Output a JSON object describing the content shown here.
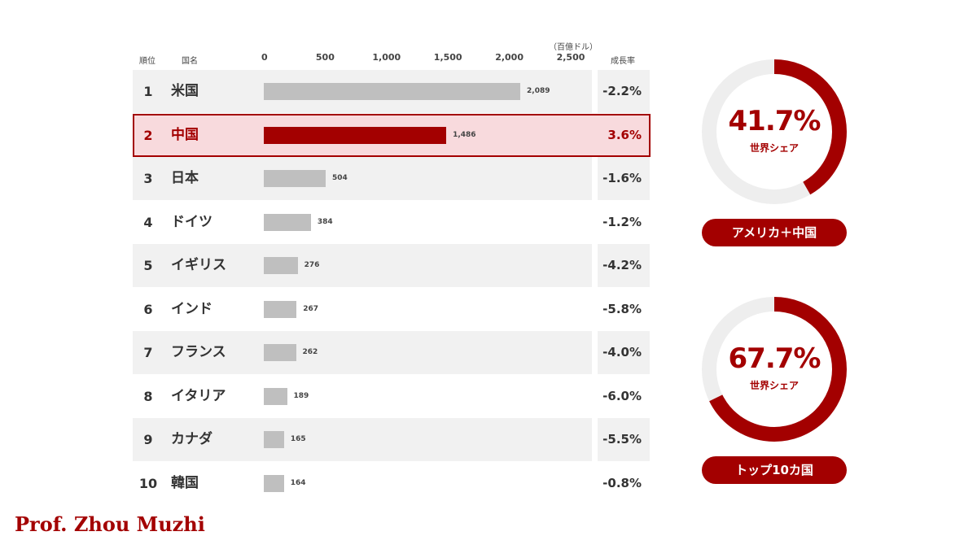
{
  "headers": {
    "rank": "順位",
    "country": "国名",
    "unit": "（百億ドル）",
    "growth": "成長率"
  },
  "colors": {
    "accent": "#a30000",
    "bar": "#bfbfbf",
    "stripe": "#f1f1f1",
    "highlight_bg": "#f8dadd",
    "donut_track": "#eeeeee"
  },
  "chart_data": {
    "type": "bar",
    "orientation": "horizontal",
    "xlim": [
      0,
      2500
    ],
    "ticks": [
      "0",
      "500",
      "1,000",
      "1,500",
      "2,000",
      "2,500"
    ],
    "rows": [
      {
        "rank": "1",
        "name": "米国",
        "value": 2089,
        "label": "2,089",
        "growth": "-2.2%"
      },
      {
        "rank": "2",
        "name": "中国",
        "value": 1486,
        "label": "1,486",
        "growth": "3.6%",
        "highlight": true
      },
      {
        "rank": "3",
        "name": "日本",
        "value": 504,
        "label": "504",
        "growth": "-1.6%"
      },
      {
        "rank": "4",
        "name": "ドイツ",
        "value": 384,
        "label": "384",
        "growth": "-1.2%"
      },
      {
        "rank": "5",
        "name": "イギリス",
        "value": 276,
        "label": "276",
        "growth": "-4.2%"
      },
      {
        "rank": "6",
        "name": "インド",
        "value": 267,
        "label": "267",
        "growth": "-5.8%"
      },
      {
        "rank": "7",
        "name": "フランス",
        "value": 262,
        "label": "262",
        "growth": "-4.0%"
      },
      {
        "rank": "8",
        "name": "イタリア",
        "value": 189,
        "label": "189",
        "growth": "-6.0%"
      },
      {
        "rank": "9",
        "name": "カナダ",
        "value": 165,
        "label": "165",
        "growth": "-5.5%"
      },
      {
        "rank": "10",
        "name": "韓国",
        "value": 164,
        "label": "164",
        "growth": "-0.8%"
      }
    ]
  },
  "donuts": [
    {
      "percent": 41.7,
      "percent_label": "41.7%",
      "caption": "世界シェア",
      "pill": "アメリカ＋中国"
    },
    {
      "percent": 67.7,
      "percent_label": "67.7%",
      "caption": "世界シェア",
      "pill": "トップ10カ国"
    }
  ],
  "signature": "Prof. Zhou Muzhi"
}
